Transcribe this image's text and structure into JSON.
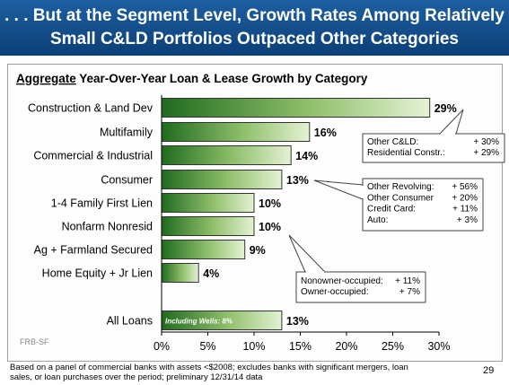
{
  "slide": {
    "title_line1": ". . . But at the Segment Level, Growth Rates Among Relatively",
    "title_line2": "Small C&LD Portfolios Outpaced Other Categories",
    "footnote_line1": "Based on a panel of commercial banks with assets <$2008; excludes banks with significant mergers, loan",
    "footnote_line2": "sales, or loan purchases over the period; preliminary 12/31/14 data",
    "page_number": "29",
    "source": "FRB-SF"
  },
  "chart_data": {
    "type": "bar",
    "orientation": "horizontal",
    "title_emphasis": "Aggregate",
    "title_rest": " Year-Over-Year Loan & Lease Growth by Category",
    "categories": [
      "Construction & Land Dev",
      "Multifamily",
      "Commercial & Industrial",
      "Consumer",
      "1-4 Family First Lien",
      "Nonfarm Nonresid",
      "Ag + Farmland Secured",
      "Home Equity + Jr Lien",
      "All Loans"
    ],
    "values": [
      29,
      16,
      14,
      13,
      10,
      10,
      9,
      4,
      13
    ],
    "value_labels": [
      "29%",
      "16%",
      "14%",
      "13%",
      "10%",
      "10%",
      "9%",
      "4%",
      "13%"
    ],
    "xlim": [
      0,
      30
    ],
    "xticks": [
      "0%",
      "5%",
      "10%",
      "15%",
      "20%",
      "25%",
      "30%"
    ],
    "grid": false,
    "bar_inner_annotation": "Including Wells: 8%",
    "callouts": [
      {
        "rows": [
          {
            "label": "Other C&LD:",
            "value": "+ 30%"
          },
          {
            "label": "Residential Constr.:",
            "value": "+ 29%"
          }
        ]
      },
      {
        "rows": [
          {
            "label": "Other Revolving:",
            "value": "+ 56%"
          },
          {
            "label": "Other Consumer",
            "value": "+ 20%"
          },
          {
            "label": "Credit Card:",
            "value": "+ 11%"
          },
          {
            "label": "Auto:",
            "value": "+ 3%"
          }
        ]
      },
      {
        "rows": [
          {
            "label": "Nonowner-occupied:",
            "value": "+ 11%"
          },
          {
            "label": "Owner-occupied:",
            "value": "+ 7%"
          }
        ]
      }
    ],
    "colors": {
      "bar_dark": "#1f6b1f",
      "bar_light": "#e4f2d4",
      "title_bar": "#14508c"
    }
  }
}
